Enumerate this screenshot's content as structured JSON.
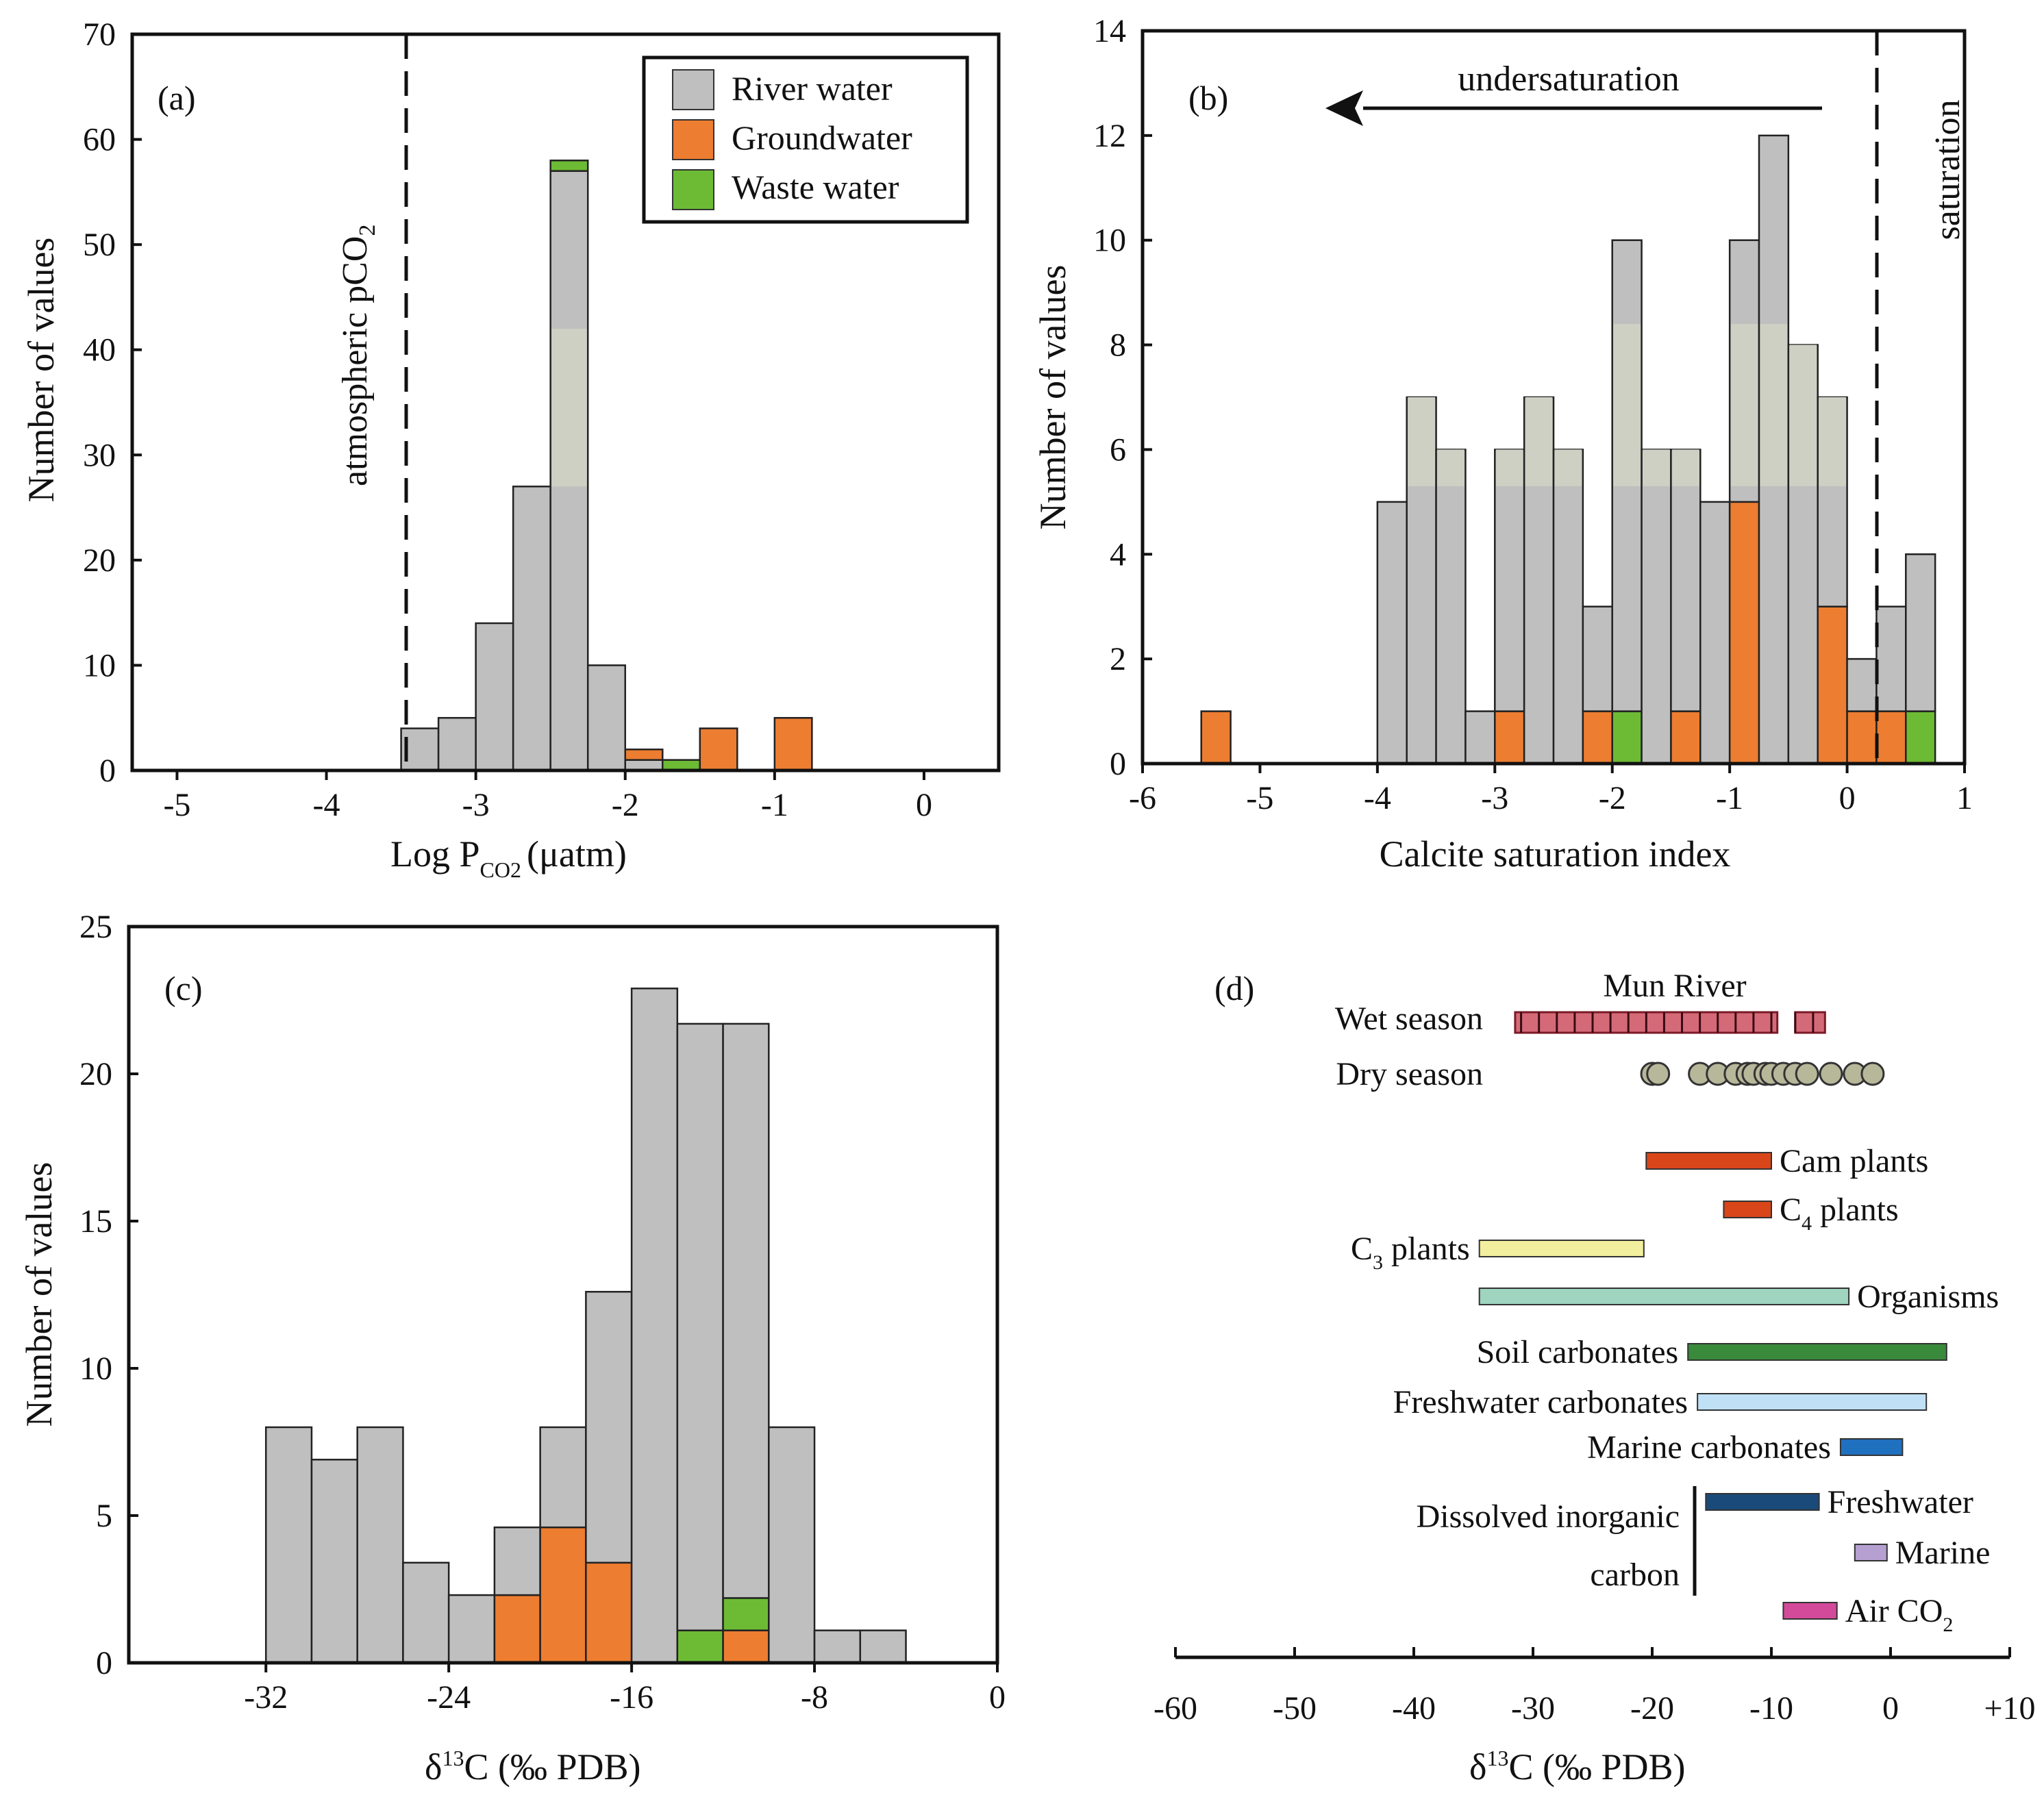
{
  "colors": {
    "river": "#bfbfbf",
    "river_highlight": "#cfd0c4",
    "ground": "#ed7d31",
    "waste": "#6dbb35",
    "axis": "#111111"
  },
  "panel_a": {
    "tag": "(a)",
    "xlabel_main": "Log P",
    "xlabel_sub": "CO2",
    "xlabel_unit": "(μatm)",
    "ylabel": "Number of values",
    "vline_label_main": "atmospheric pCO",
    "vline_label_sub": "2",
    "legend": [
      {
        "label": "River water",
        "key": "river"
      },
      {
        "label": "Groundwater",
        "key": "ground"
      },
      {
        "label": "Waste water",
        "key": "waste"
      }
    ]
  },
  "panel_b": {
    "tag": "(b)",
    "xlabel": "Calcite saturation index",
    "ylabel": "Number of values",
    "arrow_label": "undersaturation",
    "vline_label": "saturation"
  },
  "panel_c": {
    "tag": "(c)",
    "xlabel": "δ13C (‰ PDB)",
    "xlabel_main": "δ",
    "xlabel_sup": "13",
    "xlabel_rest": "C (‰ PDB)",
    "ylabel": "Number of values"
  },
  "panel_d": {
    "tag": "(d)",
    "title": "Mun River",
    "wet_label": "Wet season",
    "dry_label": "Dry season",
    "dic_label_line1": "Dissolved inorganic",
    "dic_label_line2": "carbon",
    "xlabel_main": "δ",
    "xlabel_sup": "13",
    "xlabel_rest": "C (‰ PDB)"
  },
  "chart_data": [
    {
      "id": "a",
      "type": "bar",
      "stacked": true,
      "title": "",
      "xlabel": "Log PCO2 (μatm)",
      "ylabel": "Number of values",
      "xlim": [
        -5.3,
        0.5
      ],
      "ylim": [
        0,
        70
      ],
      "xticks": [
        -5,
        -4,
        -3,
        -2,
        -1,
        0
      ],
      "yticks": [
        0,
        10,
        20,
        30,
        40,
        50,
        60,
        70
      ],
      "bin_width": 0.25,
      "bins": [
        -3.5,
        -3.25,
        -3.0,
        -2.75,
        -2.5,
        -2.25,
        -2.0,
        -1.75,
        -1.5,
        -1.0
      ],
      "series": [
        {
          "name": "River water",
          "key": "river",
          "values": [
            4,
            5,
            14,
            27,
            57,
            10,
            1,
            0,
            0,
            0
          ]
        },
        {
          "name": "Groundwater",
          "key": "ground",
          "values": [
            0,
            0,
            0,
            0,
            0,
            0,
            1,
            0,
            4,
            5
          ]
        },
        {
          "name": "Waste water",
          "key": "waste",
          "values": [
            0,
            0,
            0,
            0,
            1,
            0,
            0,
            1,
            0,
            0
          ]
        }
      ],
      "reference_line": {
        "x": -3.5,
        "label": "atmospheric pCO2"
      }
    },
    {
      "id": "b",
      "type": "bar",
      "stacked": true,
      "title": "",
      "xlabel": "Calcite saturation index",
      "ylabel": "Number of values",
      "xlim": [
        -6,
        1
      ],
      "ylim": [
        0,
        14
      ],
      "xticks": [
        -6,
        -5,
        -4,
        -3,
        -2,
        -1,
        0,
        1
      ],
      "yticks": [
        0,
        2,
        4,
        6,
        8,
        10,
        12,
        14
      ],
      "bin_width": 0.25,
      "bins": [
        -5.5,
        -4.0,
        -3.75,
        -3.5,
        -3.25,
        -3.0,
        -2.75,
        -2.5,
        -2.25,
        -2.0,
        -1.75,
        -1.5,
        -1.25,
        -1.0,
        -0.75,
        -0.5,
        -0.25,
        0.0,
        0.25,
        0.5
      ],
      "series": [
        {
          "name": "Groundwater",
          "key": "ground",
          "values": [
            1,
            0,
            0,
            0,
            0,
            1,
            0,
            0,
            1,
            0,
            0,
            1,
            0,
            5,
            0,
            0,
            3,
            1,
            1,
            0
          ]
        },
        {
          "name": "Waste water",
          "key": "waste",
          "values": [
            0,
            0,
            0,
            0,
            0,
            0,
            0,
            0,
            0,
            1,
            0,
            0,
            0,
            0,
            0,
            0,
            0,
            0,
            0,
            1
          ]
        },
        {
          "name": "River water",
          "key": "river",
          "values": [
            0,
            5,
            7,
            6,
            1,
            5,
            7,
            6,
            2,
            9,
            6,
            5,
            5,
            5,
            12,
            8,
            4,
            1,
            2,
            3
          ]
        }
      ],
      "reference_line": {
        "x": 0,
        "label": "saturation"
      },
      "annotation": {
        "text": "undersaturation",
        "arrow_from": -0.45,
        "arrow_to": -4.5
      }
    },
    {
      "id": "c",
      "type": "bar",
      "stacked": true,
      "title": "",
      "xlabel": "δ13C (‰ PDB)",
      "ylabel": "Number of values",
      "xlim": [
        -38,
        0
      ],
      "ylim": [
        0,
        25
      ],
      "xticks": [
        -32,
        -24,
        -16,
        -8,
        0
      ],
      "yticks": [
        0,
        5,
        10,
        15,
        20,
        25
      ],
      "bin_width": 2,
      "bins": [
        -32,
        -30,
        -28,
        -26,
        -24,
        -22,
        -20,
        -18,
        -16,
        -14,
        -12,
        -10,
        -8,
        -6
      ],
      "series": [
        {
          "name": "Groundwater",
          "key": "ground",
          "values": [
            0,
            0,
            0,
            0,
            0,
            2.3,
            4.6,
            3.4,
            0,
            0,
            1.1,
            0,
            0,
            0
          ]
        },
        {
          "name": "Waste water",
          "key": "waste",
          "values": [
            0,
            0,
            0,
            0,
            0,
            0,
            0,
            0,
            0,
            1.1,
            1.1,
            0,
            0,
            0
          ]
        },
        {
          "name": "River water",
          "key": "river",
          "values": [
            8,
            6.9,
            8,
            3.4,
            2.3,
            2.3,
            3.4,
            9.2,
            22.9,
            20.6,
            19.5,
            8,
            1.1,
            1.1
          ]
        }
      ]
    },
    {
      "id": "d",
      "type": "range",
      "title": "Mun River",
      "xlabel": "δ13C (‰ PDB)",
      "xlim": [
        -60,
        10
      ],
      "xticks": [
        -60,
        -50,
        -40,
        -30,
        -20,
        -10,
        0,
        10
      ],
      "xtick_labels": [
        "-60",
        "-50",
        "-40",
        "-30",
        "-20",
        "-10",
        "0",
        "+10"
      ],
      "wet_season": {
        "range": [
          -31.5,
          -5.5
        ],
        "values": [
          -31,
          -29.5,
          -28,
          -26.5,
          -25,
          -23.5,
          -22,
          -20.5,
          -19,
          -17.5,
          -16,
          -14.5,
          -13,
          -11.5,
          -10,
          -8,
          -6.5
        ]
      },
      "dry_season": {
        "values": [
          -20,
          -19.5,
          -16,
          -14.5,
          -13,
          -12,
          -11.5,
          -10.5,
          -10,
          -9,
          -8,
          -7,
          -5,
          -3,
          -1.5
        ]
      },
      "ranges": [
        {
          "label": "Cam plants",
          "min": -20.5,
          "max": -10,
          "color": "#d9461a",
          "label_side": "right"
        },
        {
          "label": "C4 plants",
          "label_main": "C",
          "label_sub": "4",
          "label_rest": " plants",
          "min": -14,
          "max": -10,
          "color": "#d9461a",
          "label_side": "right"
        },
        {
          "label": "C3 plants",
          "label_main": "C",
          "label_sub": "3",
          "label_rest": " plants",
          "min": -34.5,
          "max": -20.7,
          "color": "#f2ef9e",
          "label_side": "left"
        },
        {
          "label": "Organisms",
          "min": -34.5,
          "max": -3.5,
          "color": "#9fd4bf",
          "label_side": "right"
        },
        {
          "label": "Soil carbonates",
          "min": -17,
          "max": 4.7,
          "color": "#3a8a3c",
          "label_side": "left"
        },
        {
          "label": "Freshwater carbonates",
          "min": -16.2,
          "max": 3,
          "color": "#bfe0f5",
          "label_side": "left"
        },
        {
          "label": "Marine carbonates",
          "min": -4.2,
          "max": 1,
          "color": "#2070c0",
          "label_side": "left"
        },
        {
          "label": "Freshwater",
          "min": -15.5,
          "max": -6,
          "color": "#1a4a7a",
          "label_side": "right"
        },
        {
          "label": "Marine",
          "min": -3,
          "max": -0.3,
          "color": "#b6a0d2",
          "label_side": "right"
        },
        {
          "label": "Air CO2",
          "label_main": "Air CO",
          "label_sub": "2",
          "label_rest": "",
          "min": -9,
          "max": -4.5,
          "color": "#d44a9a",
          "label_side": "right"
        }
      ]
    }
  ]
}
